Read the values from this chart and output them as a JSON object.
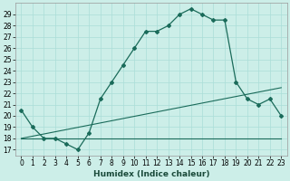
{
  "title": "",
  "xlabel": "Humidex (Indice chaleur)",
  "background_color": "#cceee8",
  "grid_color": "#aaddd8",
  "line_color": "#1a6b5a",
  "xlim": [
    -0.5,
    23.5
  ],
  "ylim": [
    16.5,
    30.0
  ],
  "xticks": [
    0,
    1,
    2,
    3,
    4,
    5,
    6,
    7,
    8,
    9,
    10,
    11,
    12,
    13,
    14,
    15,
    16,
    17,
    18,
    19,
    20,
    21,
    22,
    23
  ],
  "yticks": [
    17,
    18,
    19,
    20,
    21,
    22,
    23,
    24,
    25,
    26,
    27,
    28,
    29
  ],
  "main_line_x": [
    0,
    1,
    2,
    3,
    4,
    5,
    5,
    6,
    7,
    8,
    9,
    10,
    11,
    12,
    12,
    13,
    14,
    15,
    16,
    17,
    17,
    18,
    19,
    20,
    21,
    22,
    23
  ],
  "main_line_y": [
    20.5,
    19.0,
    18.0,
    18.0,
    17.5,
    17.0,
    17.0,
    18.5,
    21.5,
    23.0,
    24.5,
    26.0,
    27.5,
    27.5,
    27.5,
    28.0,
    29.0,
    29.5,
    29.0,
    28.5,
    28.5,
    28.5,
    23.0,
    21.5,
    21.0,
    21.5,
    20.0
  ],
  "flat_line_y": 18.0,
  "flat_line_x_start": 0,
  "flat_line_x_end": 23,
  "diag_line": [
    [
      0,
      18.0
    ],
    [
      23,
      22.5
    ]
  ],
  "marker_x": [
    0,
    1,
    2,
    3,
    4,
    5,
    6,
    7,
    8,
    9,
    10,
    11,
    12,
    13,
    14,
    15,
    16,
    17,
    18,
    19,
    20,
    21,
    22,
    23
  ],
  "marker_y": [
    20.5,
    19.0,
    18.0,
    18.0,
    17.5,
    17.0,
    18.5,
    21.5,
    23.0,
    24.5,
    26.0,
    27.5,
    27.5,
    28.0,
    29.0,
    29.5,
    29.0,
    28.5,
    28.5,
    23.0,
    21.5,
    21.0,
    21.5,
    20.0
  ],
  "tick_fontsize": 5.5,
  "xlabel_fontsize": 6.5
}
